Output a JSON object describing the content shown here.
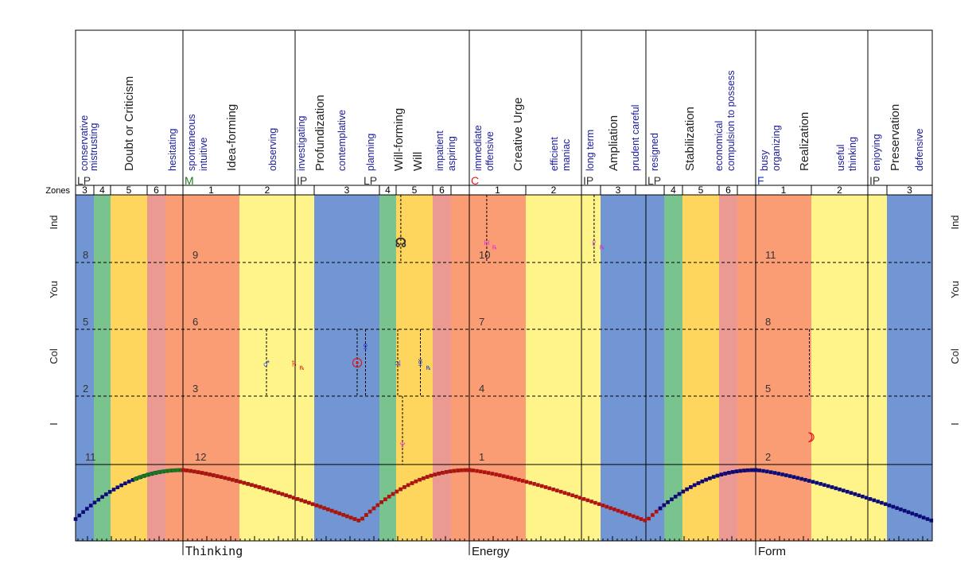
{
  "chart_data": {
    "type": "area",
    "title": "",
    "description": "Life-clock / house-zone chart with planetary positions across 12 houses grouped in three crosses",
    "x_unit": "degrees of chart (house cusp = 30 deg)",
    "colors": {
      "zone1": "#fb9d74",
      "zone2": "#fef48a",
      "zone3": "#7295d3",
      "zone4": "#79c38e",
      "zone5": "#fed65e",
      "zone6": "#ea9a93",
      "text_blue": "#1a1a9a",
      "text_dark": "#333333",
      "curve_thinking": "#1b7a1b",
      "curve_energy": "#b01212",
      "curve_form": "#0b0b78",
      "planet_blue": "#1530d0",
      "planet_red": "#e01818",
      "planet_magenta": "#e020e0"
    },
    "zones_label": "Zones",
    "zone_bands": [
      {
        "zone": "3",
        "start": -45,
        "end": -37.33,
        "color": "zone3"
      },
      {
        "zone": "4",
        "start": -37.33,
        "end": -30.33,
        "color": "zone4"
      },
      {
        "zone": "5",
        "start": -30.33,
        "end": -15,
        "color": "zone5"
      },
      {
        "zone": "6",
        "start": -15,
        "end": -7.33,
        "color": "zone6"
      },
      {
        "zone": "",
        "start": -7.33,
        "end": 0,
        "color": "zone1"
      },
      {
        "zone": "1",
        "start": 0,
        "end": 23.67,
        "color": "zone1"
      },
      {
        "zone": "2",
        "start": 23.67,
        "end": 47,
        "color": "zone2"
      },
      {
        "zone": "",
        "start": 47,
        "end": 55,
        "color": "zone2"
      },
      {
        "zone": "3",
        "start": 55,
        "end": 82.33,
        "color": "zone3"
      },
      {
        "zone": "4",
        "start": 82.33,
        "end": 89.33,
        "color": "zone4"
      },
      {
        "zone": "5",
        "start": 89.33,
        "end": 104.67,
        "color": "zone5"
      },
      {
        "zone": "6",
        "start": 104.67,
        "end": 112.33,
        "color": "zone6"
      },
      {
        "zone": "",
        "start": 112.33,
        "end": 120,
        "color": "zone1"
      },
      {
        "zone": "1",
        "start": 120,
        "end": 143.67,
        "color": "zone1"
      },
      {
        "zone": "2",
        "start": 143.67,
        "end": 167,
        "color": "zone2"
      },
      {
        "zone": "",
        "start": 167,
        "end": 175,
        "color": "zone2"
      },
      {
        "zone": "3",
        "start": 175,
        "end": 201.67,
        "color": "zone3"
      },
      {
        "zone": "4",
        "start": 201.67,
        "end": 209.33,
        "color": "zone4"
      },
      {
        "zone": "5",
        "start": 209.33,
        "end": 224.67,
        "color": "zone5"
      },
      {
        "zone": "6",
        "start": 224.67,
        "end": 232.33,
        "color": "zone6"
      },
      {
        "zone": "",
        "start": 232.33,
        "end": 240,
        "color": "zone1"
      },
      {
        "zone": "1",
        "start": 240,
        "end": 263.33,
        "color": "zone1"
      },
      {
        "zone": "2",
        "start": 263.33,
        "end": 287,
        "color": "zone2"
      },
      {
        "zone": "",
        "start": 287,
        "end": 295,
        "color": "zone2"
      },
      {
        "zone": "3",
        "start": 295,
        "end": 314,
        "color": "zone3"
      }
    ],
    "zone_header_cells": [
      {
        "label": "3",
        "start": -45,
        "end": -37.33
      },
      {
        "label": "4",
        "start": -37.33,
        "end": -30.33
      },
      {
        "label": "5",
        "start": -30.33,
        "end": -15
      },
      {
        "label": "6",
        "start": -15,
        "end": -7.33
      },
      {
        "label": "",
        "start": -7.33,
        "end": 0
      },
      {
        "label": "1",
        "start": 0,
        "end": 23.67
      },
      {
        "label": "2",
        "start": 23.67,
        "end": 47
      },
      {
        "label": "",
        "start": 47,
        "end": 55
      },
      {
        "label": "3",
        "start": 55,
        "end": 82.33
      },
      {
        "label": "4",
        "start": 82.33,
        "end": 89.33
      },
      {
        "label": "5",
        "start": 89.33,
        "end": 104.67
      },
      {
        "label": "6",
        "start": 104.67,
        "end": 112.33
      },
      {
        "label": "",
        "start": 112.33,
        "end": 120
      },
      {
        "label": "1",
        "start": 120,
        "end": 143.67
      },
      {
        "label": "2",
        "start": 143.67,
        "end": 167
      },
      {
        "label": "",
        "start": 167,
        "end": 175
      },
      {
        "label": "3",
        "start": 175,
        "end": 189.67
      },
      {
        "label": "",
        "start": 189.67,
        "end": 201.67
      },
      {
        "label": "4",
        "start": 201.67,
        "end": 209.33
      },
      {
        "label": "5",
        "start": 209.33,
        "end": 224.67
      },
      {
        "label": "6",
        "start": 224.67,
        "end": 232.33
      },
      {
        "label": "",
        "start": 232.33,
        "end": 240
      },
      {
        "label": "1",
        "start": 240,
        "end": 263.33
      },
      {
        "label": "2",
        "start": 263.33,
        "end": 287
      },
      {
        "label": "",
        "start": 287,
        "end": 295
      },
      {
        "label": "3",
        "start": 295,
        "end": 314
      }
    ],
    "section_dividers": [
      -45,
      0,
      47,
      120,
      167,
      194,
      240,
      287,
      314
    ],
    "header_markers": [
      {
        "text": "LP",
        "at": -45,
        "color": "text_dark"
      },
      {
        "text": "M",
        "at": 0,
        "color": "curve_thinking"
      },
      {
        "text": "IP",
        "at": 47,
        "color": "text_dark"
      },
      {
        "text": "LP",
        "at": 75,
        "color": "text_dark"
      },
      {
        "text": "C",
        "at": 120,
        "color": "planet_red"
      },
      {
        "text": "IP",
        "at": 167,
        "color": "text_dark"
      },
      {
        "text": "LP",
        "at": 194,
        "color": "text_dark"
      },
      {
        "text": "F",
        "at": 240,
        "color": "planet_blue"
      },
      {
        "text": "IP",
        "at": 287,
        "color": "text_dark"
      }
    ],
    "header_labels": [
      {
        "text": "conservative",
        "at": -42,
        "size": "small"
      },
      {
        "text": "mistrusting",
        "at": -38,
        "size": "small"
      },
      {
        "text": "Doubt or Criticism",
        "at": -23,
        "size": "large"
      },
      {
        "text": "hesitating",
        "at": -5,
        "size": "small"
      },
      {
        "text": "spontaneous",
        "at": 3,
        "size": "small"
      },
      {
        "text": "intuitive",
        "at": 8,
        "size": "small"
      },
      {
        "text": "Idea-forming",
        "at": 20,
        "size": "large"
      },
      {
        "text": "observing",
        "at": 37,
        "size": "small"
      },
      {
        "text": "investigating",
        "at": 49,
        "size": "small"
      },
      {
        "text": "Profundization",
        "at": 57,
        "size": "large"
      },
      {
        "text": "contemplative",
        "at": 66,
        "size": "small"
      },
      {
        "text": "planning",
        "at": 78,
        "size": "small"
      },
      {
        "text": "Will-forming",
        "at": 90,
        "size": "large"
      },
      {
        "text": "Will",
        "at": 98,
        "size": "large"
      },
      {
        "text": "impatient",
        "at": 107,
        "size": "small"
      },
      {
        "text": "aspiring",
        "at": 112,
        "size": "small"
      },
      {
        "text": "immediate",
        "at": 123,
        "size": "small"
      },
      {
        "text": "offensive",
        "at": 128,
        "size": "small"
      },
      {
        "text": "Creative Urge",
        "at": 140,
        "size": "large"
      },
      {
        "text": "efficient",
        "at": 155,
        "size": "small"
      },
      {
        "text": "maniac",
        "at": 160,
        "size": "small"
      },
      {
        "text": "long term",
        "at": 170,
        "size": "small"
      },
      {
        "text": "Ampliation",
        "at": 180,
        "size": "large"
      },
      {
        "text": "prudent careful",
        "at": 189,
        "size": "small"
      },
      {
        "text": "resigned",
        "at": 197,
        "size": "small"
      },
      {
        "text": "Stabilization",
        "at": 212,
        "size": "large"
      },
      {
        "text": "economical",
        "at": 224,
        "size": "small"
      },
      {
        "text": "compulsion to possess",
        "at": 229,
        "size": "small"
      },
      {
        "text": "busy",
        "at": 243,
        "size": "small"
      },
      {
        "text": "organizing",
        "at": 248,
        "size": "small"
      },
      {
        "text": "Realization",
        "at": 260,
        "size": "large"
      },
      {
        "text": "useful",
        "at": 275,
        "size": "small"
      },
      {
        "text": "thinking",
        "at": 280,
        "size": "small"
      },
      {
        "text": "enjoying",
        "at": 290,
        "size": "small"
      },
      {
        "text": "Preservation",
        "at": 298,
        "size": "large"
      },
      {
        "text": "defensive",
        "at": 308,
        "size": "small"
      }
    ],
    "rows": [
      "Ind",
      "You",
      "Col",
      "I"
    ],
    "house_numbers": [
      {
        "house": "8",
        "row": 0,
        "at": -43
      },
      {
        "house": "9",
        "row": 0,
        "at": 3
      },
      {
        "house": "10",
        "row": 0,
        "at": 123
      },
      {
        "house": "11",
        "row": 0,
        "at": 243
      },
      {
        "house": "5",
        "row": 1,
        "at": -43
      },
      {
        "house": "6",
        "row": 1,
        "at": 3
      },
      {
        "house": "7",
        "row": 1,
        "at": 123
      },
      {
        "house": "8",
        "row": 1,
        "at": 243
      },
      {
        "house": "2",
        "row": 2,
        "at": -43
      },
      {
        "house": "3",
        "row": 2,
        "at": 3
      },
      {
        "house": "4",
        "row": 2,
        "at": 123
      },
      {
        "house": "5",
        "row": 2,
        "at": 243
      },
      {
        "house": "11",
        "row": 3,
        "at": -42
      },
      {
        "house": "12",
        "row": 3,
        "at": 4
      },
      {
        "house": "1",
        "row": 3,
        "at": 123
      },
      {
        "house": "2",
        "row": 3,
        "at": 243
      }
    ],
    "planets": [
      {
        "name": "Mars",
        "glyph": "♂",
        "at": 35,
        "row": 2,
        "pos": 0.5,
        "color": "planet_blue",
        "retro": false,
        "line_from": 1
      },
      {
        "name": "Saturn",
        "glyph": "♄",
        "at": 46.5,
        "row": 2,
        "pos": 0.5,
        "color": "planet_red",
        "retro": true,
        "line_from": null
      },
      {
        "name": "Sun",
        "glyph": "☉",
        "at": 73,
        "row": 2,
        "pos": 0.5,
        "color": "planet_red",
        "retro": false,
        "line_from": 1
      },
      {
        "name": "Venus",
        "glyph": "♀",
        "at": 76.5,
        "row": 2,
        "pos": 0.25,
        "color": "planet_blue",
        "retro": false,
        "line_from": 1
      },
      {
        "name": "Jupiter",
        "glyph": "♃",
        "at": 90,
        "row": 2,
        "pos": 0.5,
        "color": "planet_blue",
        "retro": false,
        "line_from": 1
      },
      {
        "name": "Mercury",
        "glyph": "☿",
        "at": 99.5,
        "row": 2,
        "pos": 0.5,
        "color": "planet_blue",
        "retro": true,
        "line_from": 1
      },
      {
        "name": "Node",
        "glyph": "☊",
        "at": 91.3,
        "row": 0,
        "pos": 0.7,
        "color": "text_dark",
        "retro": false,
        "line_from": 0
      },
      {
        "name": "Neptune",
        "glyph": "♆",
        "at": 92,
        "row": 3,
        "pos": 0.7,
        "color": "planet_magenta",
        "retro": false,
        "line_from": 2
      },
      {
        "name": "Uranus",
        "glyph": "♅",
        "at": 127.3,
        "row": 0,
        "pos": 0.7,
        "color": "planet_magenta",
        "retro": true,
        "line_from": 0
      },
      {
        "name": "Pluto",
        "glyph": "♇",
        "at": 172.3,
        "row": 0,
        "pos": 0.7,
        "color": "planet_magenta",
        "retro": true,
        "line_from": 0
      },
      {
        "name": "Moon",
        "glyph": "☽",
        "at": 262.5,
        "row": 3,
        "pos": 0.6,
        "color": "planet_red",
        "retro": false,
        "line_from": 2
      }
    ],
    "axis_labels": [
      {
        "text": "Thinking",
        "at": 0
      },
      {
        "text": "Energy",
        "at": 120
      },
      {
        "text": "Form",
        "at": 240
      }
    ],
    "intensity_curve": {
      "description": "Life-clock intensity; peaks (1.0) at each cross cusp, minimum at low point",
      "segments": [
        {
          "from": -45,
          "to": 0,
          "color": "curve_form"
        },
        {
          "from": -20,
          "to": 0,
          "color": "curve_thinking"
        },
        {
          "from": 0,
          "to": 120,
          "color": "curve_thinking"
        },
        {
          "from": 0,
          "to": 120,
          "color": "curve_energy"
        },
        {
          "from": 120,
          "to": 240,
          "color": "curve_energy"
        },
        {
          "from": 200,
          "to": 240,
          "color": "curve_form"
        },
        {
          "from": 240,
          "to": 314,
          "color": "curve_form"
        }
      ],
      "peak": 1.0,
      "trough": 0.0
    },
    "xlim": [
      -45,
      314
    ],
    "tick_step": 2
  }
}
